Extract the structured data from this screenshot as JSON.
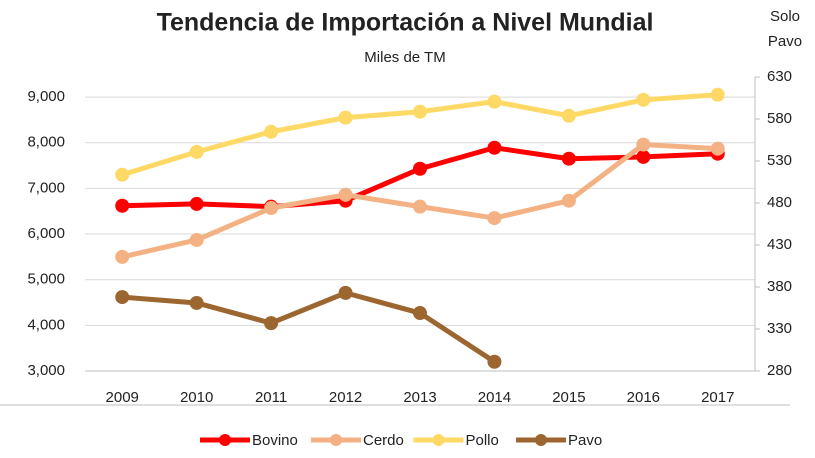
{
  "chart_data": {
    "type": "line",
    "title": "Tendencia de Importación a Nivel Mundial",
    "subtitle": "Miles de TM",
    "y2_label": [
      "Solo",
      "Pavo"
    ],
    "categories": [
      "2009",
      "2010",
      "2011",
      "2012",
      "2013",
      "2014",
      "2015",
      "2016",
      "2017"
    ],
    "series": [
      {
        "name": "Bovino",
        "color": "#ff0000",
        "values": [
          6620,
          6660,
          6600,
          6730,
          7430,
          7890,
          7650,
          7690,
          7760
        ]
      },
      {
        "name": "Cerdo",
        "color": "#f4b183",
        "values": [
          5500,
          5870,
          6570,
          6860,
          6600,
          6350,
          6730,
          7960,
          7870
        ]
      },
      {
        "name": "Pollo",
        "color": "#ffd966",
        "values": [
          7300,
          7800,
          8240,
          8550,
          8680,
          8900,
          8590,
          8940,
          9050
        ]
      },
      {
        "name": "Pavo",
        "color": "#9c6630",
        "axis": "y2",
        "values": [
          368,
          361,
          337,
          373,
          349,
          291,
          null,
          null,
          null
        ]
      }
    ],
    "ylim": [
      3000,
      9440
    ],
    "yticks": [
      {
        "value": 3000,
        "label": "3,000"
      },
      {
        "value": 4000,
        "label": "4,000"
      },
      {
        "value": 5000,
        "label": "5,000"
      },
      {
        "value": 6000,
        "label": "6,000"
      },
      {
        "value": 7000,
        "label": "7,000"
      },
      {
        "value": 8000,
        "label": "8,000"
      },
      {
        "value": 9000,
        "label": "9,000"
      }
    ],
    "y2lim": [
      280,
      630
    ],
    "y2ticks": [
      280,
      330,
      380,
      430,
      480,
      530,
      580,
      630
    ],
    "grid": true,
    "legend": "bottom"
  }
}
